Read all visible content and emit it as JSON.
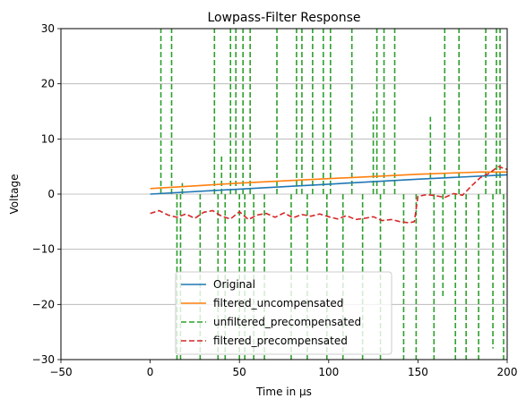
{
  "chart_data": {
    "type": "line",
    "title": "Lowpass-Filter Response",
    "xlabel": "Time in µs",
    "ylabel": "Voltage",
    "xlim": [
      -50,
      200
    ],
    "ylim": [
      -30,
      30
    ],
    "x_ticks": [
      -50,
      0,
      50,
      100,
      150,
      200
    ],
    "x_tick_labels": [
      "−50",
      "0",
      "50",
      "100",
      "150",
      "200"
    ],
    "y_ticks": [
      -30,
      -20,
      -10,
      0,
      10,
      20,
      30
    ],
    "y_tick_labels": [
      "−30",
      "−20",
      "−10",
      "0",
      "10",
      "20",
      "30"
    ],
    "grid": "horizontal",
    "legend_position": "lower center",
    "series": [
      {
        "name": "Original",
        "color": "#1f77b4",
        "style": "solid",
        "x": [
          0,
          50,
          100,
          150,
          200
        ],
        "y": [
          0,
          0.9,
          1.8,
          2.7,
          3.5
        ]
      },
      {
        "name": "filtered_uncompensated",
        "color": "#ff7f0e",
        "style": "solid",
        "x": [
          0,
          25,
          50,
          75,
          100,
          125,
          150,
          175,
          185,
          200
        ],
        "y": [
          1.0,
          1.5,
          2.0,
          2.4,
          2.8,
          3.2,
          3.6,
          3.9,
          4.0,
          4.0
        ]
      },
      {
        "name": "unfiltered_precompensated",
        "color": "#2ca02c",
        "style": "dashed",
        "spikes": [
          {
            "x": 6,
            "y": 30
          },
          {
            "x": 12,
            "y": 30
          },
          {
            "x": 15,
            "y": -30
          },
          {
            "x": 17,
            "y": -30
          },
          {
            "x": 18,
            "y": 2
          },
          {
            "x": 28,
            "y": -30
          },
          {
            "x": 36,
            "y": 30
          },
          {
            "x": 38,
            "y": -30
          },
          {
            "x": 40,
            "y": 7
          },
          {
            "x": 42,
            "y": -30
          },
          {
            "x": 45,
            "y": 30
          },
          {
            "x": 48,
            "y": 30
          },
          {
            "x": 50,
            "y": -30
          },
          {
            "x": 52,
            "y": 30
          },
          {
            "x": 53,
            "y": -30
          },
          {
            "x": 56,
            "y": 30
          },
          {
            "x": 58,
            "y": -30
          },
          {
            "x": 64,
            "y": -30
          },
          {
            "x": 71,
            "y": 30
          },
          {
            "x": 79,
            "y": -30
          },
          {
            "x": 82,
            "y": 30
          },
          {
            "x": 85,
            "y": 30
          },
          {
            "x": 88,
            "y": -30
          },
          {
            "x": 91,
            "y": 30
          },
          {
            "x": 97,
            "y": 30
          },
          {
            "x": 99,
            "y": -30
          },
          {
            "x": 101,
            "y": 30
          },
          {
            "x": 108,
            "y": -30
          },
          {
            "x": 113,
            "y": 30
          },
          {
            "x": 119,
            "y": -30
          },
          {
            "x": 125,
            "y": 15
          },
          {
            "x": 127,
            "y": 30
          },
          {
            "x": 129,
            "y": -30
          },
          {
            "x": 131,
            "y": 30
          },
          {
            "x": 137,
            "y": 30
          },
          {
            "x": 142,
            "y": -30
          },
          {
            "x": 149,
            "y": -30
          },
          {
            "x": 157,
            "y": 14
          },
          {
            "x": 159,
            "y": -30
          },
          {
            "x": 164,
            "y": -19
          },
          {
            "x": 165,
            "y": 30
          },
          {
            "x": 171,
            "y": -30
          },
          {
            "x": 173,
            "y": 30
          },
          {
            "x": 177,
            "y": -30
          },
          {
            "x": 184,
            "y": -30
          },
          {
            "x": 188,
            "y": 30
          },
          {
            "x": 192,
            "y": -28
          },
          {
            "x": 194,
            "y": 30
          },
          {
            "x": 196,
            "y": 30
          },
          {
            "x": 198,
            "y": -30
          }
        ]
      },
      {
        "name": "filtered_precompensated",
        "color": "#d62728",
        "style": "dashed",
        "x": [
          0,
          5,
          10,
          15,
          20,
          25,
          30,
          35,
          40,
          45,
          50,
          55,
          60,
          65,
          70,
          75,
          80,
          85,
          90,
          95,
          100,
          105,
          110,
          115,
          120,
          125,
          130,
          135,
          140,
          145,
          148,
          150,
          155,
          160,
          165,
          170,
          175,
          180,
          185,
          190,
          195,
          200
        ],
        "y": [
          -3.5,
          -3.0,
          -3.8,
          -4.2,
          -3.6,
          -4.4,
          -3.3,
          -3.0,
          -4.0,
          -4.5,
          -3.2,
          -4.6,
          -3.8,
          -3.5,
          -4.2,
          -3.4,
          -4.3,
          -3.7,
          -4.0,
          -3.6,
          -4.1,
          -4.5,
          -3.9,
          -4.6,
          -4.4,
          -4.1,
          -4.8,
          -4.6,
          -5.0,
          -5.2,
          -5.0,
          -0.4,
          -0.1,
          -0.3,
          -0.6,
          0.1,
          -0.2,
          1.5,
          3.0,
          3.8,
          5.0,
          4.5
        ]
      }
    ]
  }
}
